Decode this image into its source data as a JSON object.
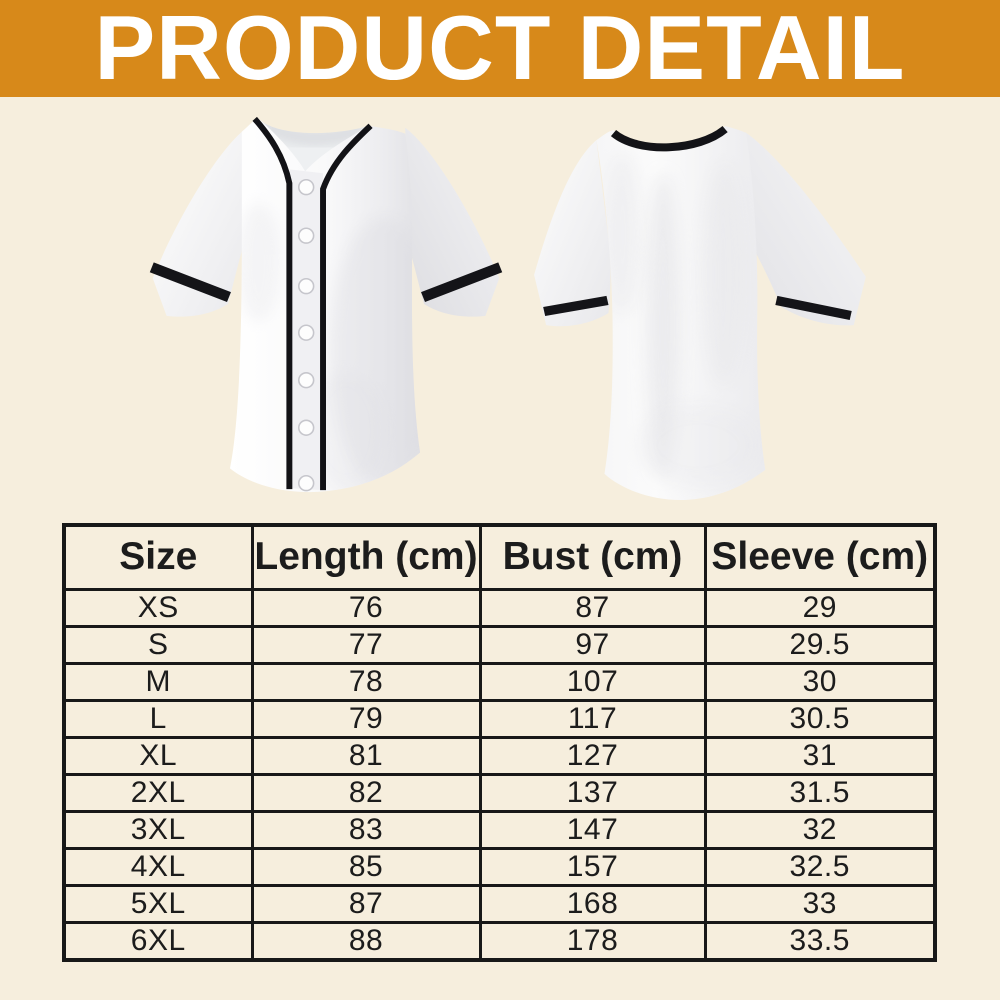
{
  "header": {
    "title": "PRODUCT DETAIL"
  },
  "theme": {
    "banner_bg": "#d7891a",
    "banner_text": "#ffffff",
    "page_bg": "#f6eedd",
    "table_border": "#181818",
    "ink": "#1c1c1c"
  },
  "product_images": {
    "front_icon": "baseball-jersey-front-photo",
    "back_icon": "baseball-jersey-back-photo",
    "jersey_white": "#fafafa",
    "trim_black": "#141418"
  },
  "size_chart": {
    "columns": [
      "Size",
      "Length (cm)",
      "Bust (cm)",
      "Sleeve (cm)"
    ],
    "rows": [
      [
        "XS",
        "76",
        "87",
        "29"
      ],
      [
        "S",
        "77",
        "97",
        "29.5"
      ],
      [
        "M",
        "78",
        "107",
        "30"
      ],
      [
        "L",
        "79",
        "117",
        "30.5"
      ],
      [
        "XL",
        "81",
        "127",
        "31"
      ],
      [
        "2XL",
        "82",
        "137",
        "31.5"
      ],
      [
        "3XL",
        "83",
        "147",
        "32"
      ],
      [
        "4XL",
        "85",
        "157",
        "32.5"
      ],
      [
        "5XL",
        "87",
        "168",
        "33"
      ],
      [
        "6XL",
        "88",
        "178",
        "33.5"
      ]
    ]
  }
}
